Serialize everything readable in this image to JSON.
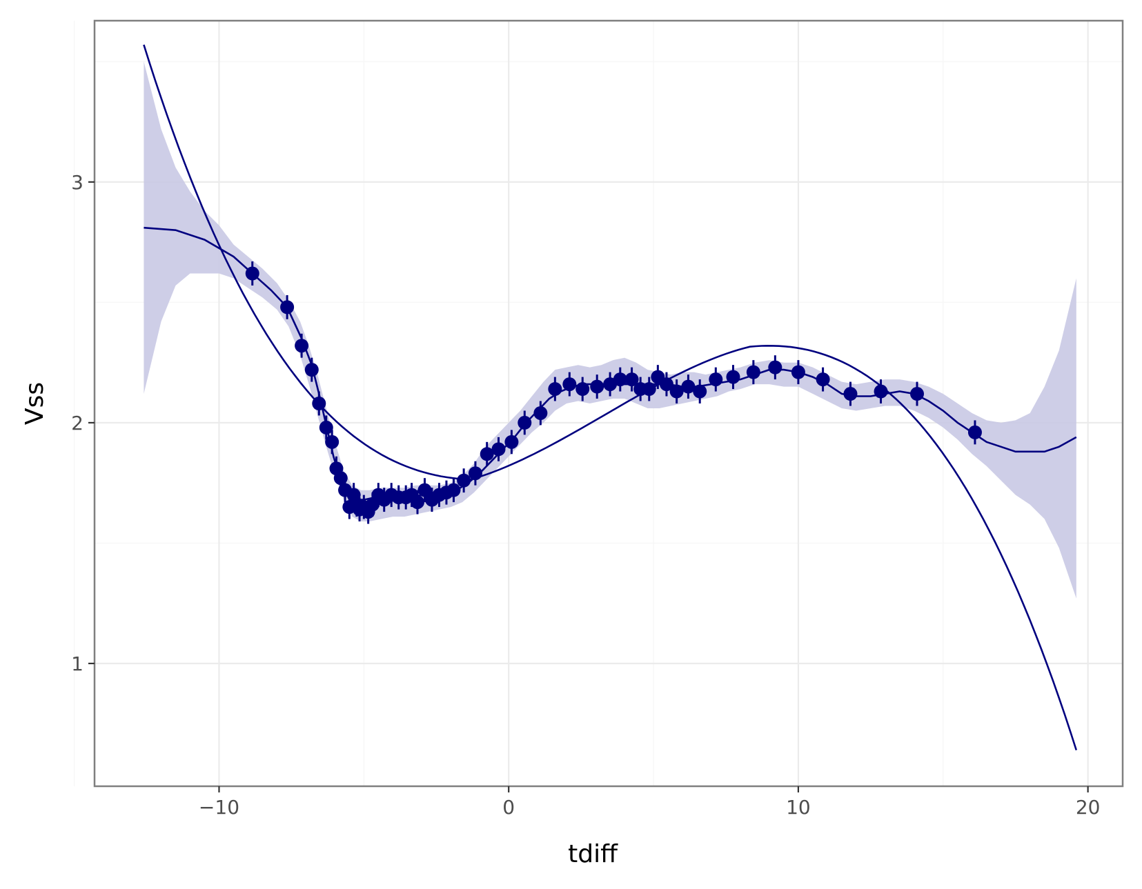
{
  "chart_data": {
    "type": "scatter",
    "title": "",
    "xlabel": "tdiff",
    "ylabel": "Vss",
    "xlim": [
      -14.3,
      21.2
    ],
    "ylim": [
      0.49,
      3.67
    ],
    "x_ticks": [
      -10,
      0,
      10,
      20
    ],
    "x_tick_labels": [
      "−10",
      "0",
      "10",
      "20"
    ],
    "y_ticks": [
      1,
      2,
      3
    ],
    "y_tick_labels": [
      "1",
      "2",
      "3"
    ],
    "x_minor_ticks": [
      -15,
      -5,
      5,
      15
    ],
    "y_minor_ticks": [
      1.5,
      2.5,
      3.5
    ],
    "grid": true,
    "legend": "none",
    "colors": {
      "series": "#00007f",
      "band": "#c9c9e4",
      "panel_border": "#7f7f7f",
      "grid_major": "#ebebeb",
      "grid_minor": "#f7f7f7"
    },
    "points": {
      "x": [
        -8.85,
        -7.65,
        -7.15,
        -6.8,
        -6.55,
        -6.3,
        -6.1,
        -5.95,
        -5.8,
        -5.65,
        -5.5,
        -5.35,
        -5.25,
        -5.15,
        -5.0,
        -4.85,
        -4.7,
        -4.5,
        -4.3,
        -4.05,
        -3.8,
        -3.55,
        -3.35,
        -3.15,
        -2.9,
        -2.65,
        -2.4,
        -2.15,
        -1.9,
        -1.55,
        -1.15,
        -0.75,
        -0.35,
        0.1,
        0.55,
        1.1,
        1.6,
        2.1,
        2.55,
        3.05,
        3.5,
        3.85,
        4.25,
        4.55,
        4.85,
        5.15,
        5.45,
        5.8,
        6.2,
        6.6,
        7.15,
        7.75,
        8.45,
        9.2,
        10.0,
        10.85,
        11.8,
        12.85,
        14.1,
        16.1
      ],
      "y": [
        2.62,
        2.48,
        2.32,
        2.22,
        2.08,
        1.98,
        1.92,
        1.81,
        1.77,
        1.72,
        1.65,
        1.7,
        1.66,
        1.64,
        1.65,
        1.63,
        1.66,
        1.7,
        1.68,
        1.7,
        1.69,
        1.69,
        1.7,
        1.67,
        1.72,
        1.68,
        1.7,
        1.71,
        1.72,
        1.76,
        1.79,
        1.87,
        1.89,
        1.92,
        2.0,
        2.04,
        2.14,
        2.16,
        2.14,
        2.15,
        2.16,
        2.18,
        2.18,
        2.14,
        2.14,
        2.19,
        2.16,
        2.13,
        2.15,
        2.13,
        2.18,
        2.19,
        2.21,
        2.23,
        2.21,
        2.18,
        2.12,
        2.13,
        2.12,
        1.96
      ],
      "err": 0.05
    },
    "smooth_curve": {
      "x": [
        -12.6,
        -11.5,
        -10.5,
        -9.5,
        -8.85,
        -8.2,
        -7.65,
        -7.15,
        -6.8,
        -6.55,
        -6.3,
        -6.05,
        -5.8,
        -5.55,
        -5.3,
        -5.0,
        -4.6,
        -4.2,
        -3.8,
        -3.4,
        -3.0,
        -2.6,
        -2.2,
        -1.8,
        -1.4,
        -1.0,
        -0.6,
        -0.2,
        0.2,
        0.6,
        1.0,
        1.4,
        1.8,
        2.2,
        2.6,
        3.0,
        3.5,
        4.0,
        4.5,
        5.0,
        5.5,
        6.0,
        6.5,
        7.0,
        7.5,
        8.0,
        8.5,
        9.0,
        9.5,
        10.0,
        10.5,
        11.0,
        11.5,
        12.0,
        12.5,
        13.0,
        13.5,
        14.0,
        14.5,
        15.0,
        15.5,
        16.0,
        16.5,
        17.0,
        17.5,
        18.0,
        18.5,
        19.0,
        19.6
      ],
      "y": [
        2.81,
        2.8,
        2.76,
        2.69,
        2.62,
        2.55,
        2.48,
        2.35,
        2.24,
        2.12,
        1.99,
        1.86,
        1.76,
        1.7,
        1.68,
        1.68,
        1.69,
        1.69,
        1.69,
        1.69,
        1.7,
        1.7,
        1.7,
        1.72,
        1.75,
        1.79,
        1.84,
        1.89,
        1.94,
        2.0,
        2.05,
        2.1,
        2.13,
        2.15,
        2.16,
        2.16,
        2.16,
        2.16,
        2.16,
        2.16,
        2.16,
        2.15,
        2.15,
        2.16,
        2.17,
        2.18,
        2.2,
        2.22,
        2.22,
        2.21,
        2.19,
        2.16,
        2.12,
        2.11,
        2.11,
        2.12,
        2.13,
        2.12,
        2.09,
        2.05,
        2.0,
        1.96,
        1.92,
        1.9,
        1.88,
        1.88,
        1.88,
        1.9,
        1.94
      ]
    },
    "band": {
      "x": [
        -12.6,
        -12.0,
        -11.5,
        -11.0,
        -10.5,
        -10.0,
        -9.5,
        -9.0,
        -8.5,
        -8.0,
        -7.6,
        -7.2,
        -6.9,
        -6.6,
        -6.3,
        -6.0,
        -5.7,
        -5.4,
        -5.1,
        -4.8,
        -4.4,
        -4.0,
        -3.6,
        -3.2,
        -2.8,
        -2.4,
        -2.0,
        -1.6,
        -1.2,
        -0.8,
        -0.4,
        0.0,
        0.4,
        0.8,
        1.2,
        1.6,
        2.0,
        2.4,
        2.8,
        3.2,
        3.6,
        4.0,
        4.4,
        4.8,
        5.2,
        5.6,
        6.0,
        6.4,
        6.8,
        7.2,
        7.6,
        8.0,
        8.5,
        9.0,
        9.5,
        10.0,
        10.5,
        11.0,
        11.5,
        12.0,
        12.5,
        13.0,
        13.5,
        14.0,
        14.5,
        15.0,
        15.5,
        16.0,
        16.5,
        17.0,
        17.5,
        18.0,
        18.5,
        19.0,
        19.6
      ],
      "upper": [
        3.5,
        3.22,
        3.06,
        2.96,
        2.88,
        2.82,
        2.74,
        2.69,
        2.64,
        2.58,
        2.51,
        2.42,
        2.32,
        2.2,
        2.06,
        1.92,
        1.8,
        1.74,
        1.72,
        1.72,
        1.73,
        1.73,
        1.73,
        1.74,
        1.74,
        1.74,
        1.75,
        1.78,
        1.83,
        1.9,
        1.95,
        2.0,
        2.05,
        2.11,
        2.17,
        2.22,
        2.23,
        2.24,
        2.23,
        2.24,
        2.26,
        2.27,
        2.25,
        2.22,
        2.21,
        2.2,
        2.21,
        2.21,
        2.2,
        2.21,
        2.22,
        2.23,
        2.25,
        2.26,
        2.25,
        2.25,
        2.23,
        2.2,
        2.17,
        2.16,
        2.17,
        2.18,
        2.18,
        2.17,
        2.15,
        2.12,
        2.08,
        2.04,
        2.01,
        2.0,
        2.01,
        2.04,
        2.15,
        2.3,
        2.6
      ],
      "lower": [
        2.12,
        2.42,
        2.57,
        2.62,
        2.62,
        2.62,
        2.6,
        2.56,
        2.52,
        2.47,
        2.4,
        2.28,
        2.16,
        2.03,
        1.9,
        1.78,
        1.68,
        1.61,
        1.59,
        1.59,
        1.6,
        1.61,
        1.61,
        1.62,
        1.63,
        1.64,
        1.65,
        1.67,
        1.71,
        1.76,
        1.81,
        1.86,
        1.91,
        1.96,
        2.0,
        2.05,
        2.08,
        2.09,
        2.08,
        2.09,
        2.1,
        2.1,
        2.08,
        2.06,
        2.06,
        2.07,
        2.08,
        2.09,
        2.1,
        2.11,
        2.13,
        2.14,
        2.16,
        2.16,
        2.15,
        2.15,
        2.12,
        2.09,
        2.06,
        2.05,
        2.06,
        2.07,
        2.07,
        2.05,
        2.02,
        1.98,
        1.93,
        1.87,
        1.82,
        1.76,
        1.7,
        1.66,
        1.6,
        1.48,
        1.27
      ]
    },
    "cubic_curve": {
      "x_range": [
        -12.6,
        19.6
      ],
      "vertex_x_max": 9.9,
      "vertex_y_max": 2.34,
      "vertex_x_min": -3.2,
      "vertex_y_min": 1.73,
      "y_start": 3.57,
      "y_end": 0.64
    }
  }
}
